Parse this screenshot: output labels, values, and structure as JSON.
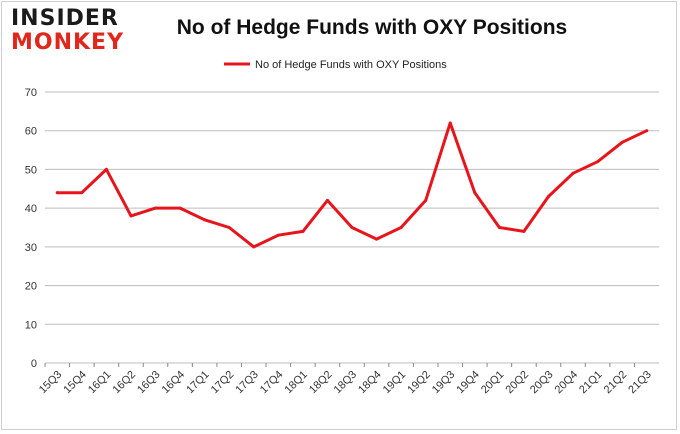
{
  "logo": {
    "top": "INSIDER",
    "bottom": "MONKEY"
  },
  "colors": {
    "series": "#e8141b",
    "grid": "#bdbdbd",
    "logo_accent": "#e1261c"
  },
  "chart_data": {
    "type": "line",
    "title": "No of Hedge Funds with OXY Positions",
    "xlabel": "",
    "ylabel": "",
    "ylim": [
      0,
      70
    ],
    "yticks": [
      0,
      10,
      20,
      30,
      40,
      50,
      60,
      70
    ],
    "grid": "horizontal",
    "legend_position": "top-center",
    "categories": [
      "15Q3",
      "15Q4",
      "16Q1",
      "16Q2",
      "16Q3",
      "16Q4",
      "17Q1",
      "17Q2",
      "17Q3",
      "17Q4",
      "18Q1",
      "18Q2",
      "18Q3",
      "18Q4",
      "19Q1",
      "19Q2",
      "19Q3",
      "19Q4",
      "20Q1",
      "20Q2",
      "20Q3",
      "20Q4",
      "21Q1",
      "21Q2",
      "21Q3"
    ],
    "series": [
      {
        "name": "No of Hedge Funds with OXY Positions",
        "color": "#e8141b",
        "values": [
          44,
          44,
          50,
          38,
          40,
          40,
          37,
          35,
          30,
          33,
          34,
          42,
          35,
          32,
          35,
          42,
          62,
          44,
          35,
          34,
          43,
          49,
          52,
          57,
          60
        ]
      }
    ]
  }
}
